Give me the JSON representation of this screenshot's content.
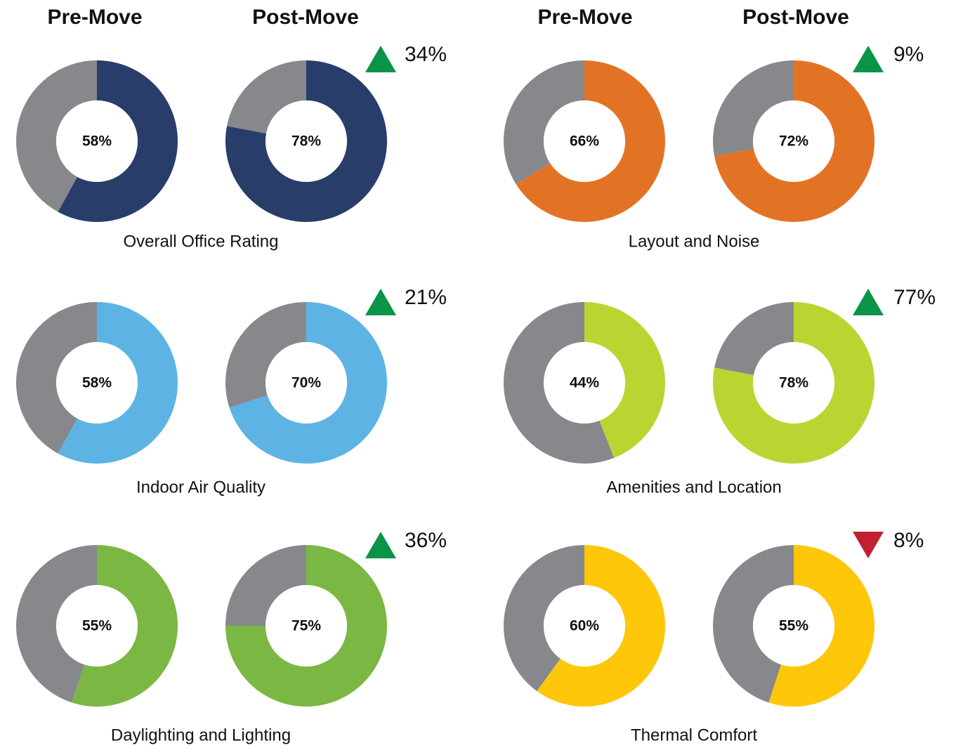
{
  "chart_data": [
    {
      "type": "donut",
      "title": "Overall Office Rating",
      "categories": [
        "Pre-Move",
        "Post-Move"
      ],
      "values": [
        58,
        78
      ],
      "value_labels": [
        "58%",
        "78%"
      ],
      "color": "#283d6a",
      "rest_color": "#87888c",
      "change": {
        "value": 34,
        "label": "34%"
      },
      "up_color": "#0a9447",
      "down_color": "#c0202f"
    },
    {
      "type": "donut",
      "title": "Layout and Noise",
      "categories": [
        "Pre-Move",
        "Post-Move"
      ],
      "values": [
        66,
        72
      ],
      "value_labels": [
        "66%",
        "72%"
      ],
      "color": "#e37324",
      "rest_color": "#87888c",
      "change": {
        "value": 9,
        "label": "9%"
      },
      "up_color": "#0a9447",
      "down_color": "#c0202f"
    },
    {
      "type": "donut",
      "title": "Indoor Air Quality",
      "categories": [
        "Pre-Move",
        "Post-Move"
      ],
      "values": [
        58,
        70
      ],
      "value_labels": [
        "58%",
        "70%"
      ],
      "color": "#5db3e4",
      "rest_color": "#87888c",
      "change": {
        "value": 21,
        "label": "21%"
      },
      "up_color": "#0a9447",
      "down_color": "#c0202f"
    },
    {
      "type": "donut",
      "title": "Amenities and Location",
      "categories": [
        "Pre-Move",
        "Post-Move"
      ],
      "values": [
        44,
        78
      ],
      "value_labels": [
        "44%",
        "78%"
      ],
      "color": "#bad531",
      "rest_color": "#87888c",
      "change": {
        "value": 77,
        "label": "77%"
      },
      "up_color": "#0a9447",
      "down_color": "#c0202f"
    },
    {
      "type": "donut",
      "title": "Daylighting and Lighting",
      "categories": [
        "Pre-Move",
        "Post-Move"
      ],
      "values": [
        55,
        75
      ],
      "value_labels": [
        "55%",
        "75%"
      ],
      "color": "#7ab743",
      "rest_color": "#87888c",
      "change": {
        "value": 36,
        "label": "36%"
      },
      "up_color": "#0a9447",
      "down_color": "#c0202f"
    },
    {
      "type": "donut",
      "title": "Thermal Comfort",
      "categories": [
        "Pre-Move",
        "Post-Move"
      ],
      "values": [
        60,
        55
      ],
      "value_labels": [
        "60%",
        "55%"
      ],
      "color": "#fec70a",
      "rest_color": "#87888c",
      "change": {
        "value": -8,
        "label": "8%"
      },
      "up_color": "#0a9447",
      "down_color": "#c0202f"
    }
  ]
}
